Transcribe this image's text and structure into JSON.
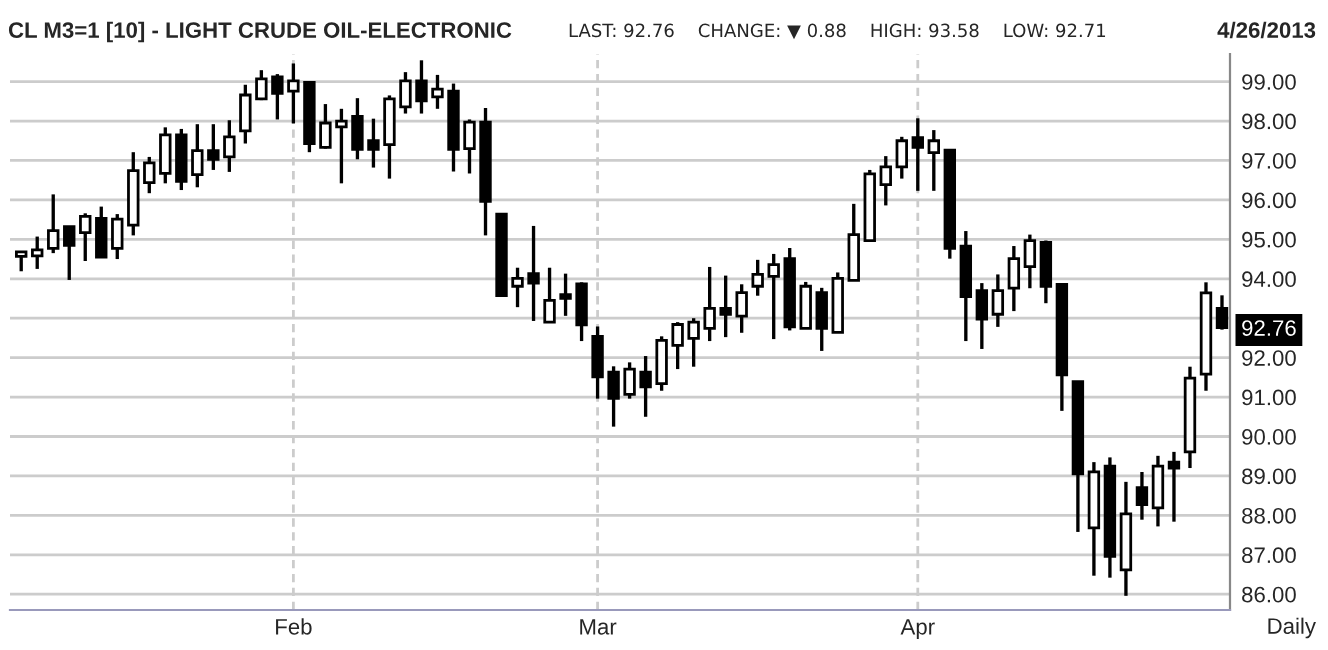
{
  "chart_data": {
    "type": "candlestick",
    "title": "CL M3=1 [10] - LIGHT CRUDE OIL-ELECTRONIC",
    "subtitle": "LAST: 92.76    CHANGE: ▼ 0.88    HIGH: 93.58    LOW: 92.71",
    "annotations": [
      "4/26/2013",
      "Daily"
    ],
    "categories": [
      null,
      null,
      null,
      null,
      null,
      null,
      null,
      null,
      null,
      null,
      null,
      null,
      null,
      null,
      null,
      null,
      null,
      "Feb",
      null,
      null,
      null,
      null,
      null,
      null,
      null,
      null,
      null,
      null,
      null,
      null,
      null,
      null,
      null,
      null,
      null,
      null,
      "Mar",
      null,
      null,
      null,
      null,
      null,
      null,
      null,
      null,
      null,
      null,
      null,
      null,
      null,
      null,
      null,
      null,
      null,
      null,
      null,
      "Apr",
      null,
      null,
      null,
      null,
      null,
      null,
      null,
      null,
      null,
      null,
      null,
      null,
      null,
      null,
      null,
      null,
      null,
      null,
      null
    ],
    "ohlc": [
      [
        94.57,
        94.68,
        94.19,
        94.68
      ],
      [
        94.58,
        95.07,
        94.25,
        94.73
      ],
      [
        94.77,
        96.14,
        94.65,
        95.22
      ],
      [
        95.32,
        95.32,
        93.97,
        94.85
      ],
      [
        95.17,
        95.66,
        94.45,
        95.58
      ],
      [
        95.53,
        95.83,
        94.55,
        94.55
      ],
      [
        94.77,
        95.64,
        94.5,
        95.51
      ],
      [
        95.36,
        97.21,
        95.1,
        96.74
      ],
      [
        96.44,
        97.09,
        96.17,
        96.94
      ],
      [
        96.67,
        97.84,
        96.42,
        97.65
      ],
      [
        97.65,
        97.8,
        96.25,
        96.47
      ],
      [
        96.64,
        97.92,
        96.32,
        97.25
      ],
      [
        97.25,
        97.92,
        96.76,
        97.03
      ],
      [
        97.09,
        98.02,
        96.71,
        97.6
      ],
      [
        97.75,
        98.92,
        97.43,
        98.66
      ],
      [
        98.56,
        99.29,
        98.53,
        99.07
      ],
      [
        99.12,
        99.19,
        98.04,
        98.7
      ],
      [
        98.76,
        99.46,
        97.94,
        99.02
      ],
      [
        98.98,
        98.98,
        97.21,
        97.43
      ],
      [
        97.33,
        98.43,
        97.3,
        97.95
      ],
      [
        97.85,
        98.31,
        96.42,
        98.0
      ],
      [
        98.12,
        98.58,
        97.03,
        97.28
      ],
      [
        97.5,
        98.06,
        96.82,
        97.28
      ],
      [
        97.4,
        98.65,
        96.54,
        98.56
      ],
      [
        98.36,
        99.24,
        98.19,
        99.02
      ],
      [
        99.02,
        99.54,
        98.19,
        98.51
      ],
      [
        98.61,
        99.17,
        98.31,
        98.81
      ],
      [
        98.76,
        98.95,
        96.72,
        97.28
      ],
      [
        97.3,
        98.04,
        96.67,
        97.97
      ],
      [
        97.97,
        98.33,
        95.1,
        95.96
      ],
      [
        95.64,
        95.64,
        93.54,
        93.57
      ],
      [
        93.81,
        94.28,
        93.28,
        94.01
      ],
      [
        94.13,
        95.34,
        92.93,
        93.89
      ],
      [
        92.9,
        94.28,
        92.9,
        93.45
      ],
      [
        93.6,
        94.13,
        93.06,
        93.5
      ],
      [
        93.87,
        93.91,
        92.42,
        92.83
      ],
      [
        92.54,
        92.79,
        90.96,
        91.51
      ],
      [
        91.63,
        91.78,
        90.25,
        90.97
      ],
      [
        91.07,
        91.88,
        90.96,
        91.71
      ],
      [
        91.63,
        92.04,
        90.5,
        91.26
      ],
      [
        91.34,
        92.54,
        91.16,
        92.44
      ],
      [
        92.31,
        92.9,
        91.71,
        92.84
      ],
      [
        92.49,
        93.0,
        91.77,
        92.9
      ],
      [
        92.74,
        94.3,
        92.42,
        93.25
      ],
      [
        93.25,
        94.08,
        92.52,
        93.1
      ],
      [
        93.05,
        93.86,
        92.63,
        93.65
      ],
      [
        93.81,
        94.48,
        93.57,
        94.11
      ],
      [
        94.06,
        94.63,
        92.47,
        94.36
      ],
      [
        94.51,
        94.78,
        92.69,
        92.78
      ],
      [
        92.74,
        93.92,
        92.74,
        93.81
      ],
      [
        93.65,
        93.77,
        92.17,
        92.74
      ],
      [
        92.64,
        94.16,
        92.64,
        94.01
      ],
      [
        93.96,
        95.9,
        93.96,
        95.12
      ],
      [
        94.97,
        96.76,
        94.97,
        96.66
      ],
      [
        96.39,
        97.11,
        95.86,
        96.84
      ],
      [
        96.84,
        97.6,
        96.54,
        97.5
      ],
      [
        97.58,
        98.07,
        96.23,
        97.33
      ],
      [
        97.2,
        97.77,
        96.23,
        97.5
      ],
      [
        97.26,
        97.26,
        94.51,
        94.77
      ],
      [
        94.83,
        95.21,
        92.42,
        93.55
      ],
      [
        93.7,
        93.89,
        92.22,
        92.98
      ],
      [
        93.1,
        94.11,
        92.78,
        93.7
      ],
      [
        93.76,
        94.83,
        93.18,
        94.51
      ],
      [
        94.31,
        95.12,
        93.76,
        94.97
      ],
      [
        94.92,
        94.97,
        93.38,
        93.81
      ],
      [
        93.86,
        93.86,
        90.65,
        91.56
      ],
      [
        91.39,
        91.39,
        87.58,
        89.05
      ],
      [
        87.68,
        89.35,
        86.47,
        89.1
      ],
      [
        89.25,
        89.47,
        86.42,
        86.96
      ],
      [
        86.62,
        88.85,
        85.96,
        88.04
      ],
      [
        88.7,
        89.1,
        87.89,
        88.27
      ],
      [
        88.19,
        89.51,
        87.72,
        89.25
      ],
      [
        89.35,
        89.61,
        87.84,
        89.2
      ],
      [
        89.61,
        91.77,
        89.2,
        91.48
      ],
      [
        91.58,
        93.91,
        91.16,
        93.64
      ],
      [
        93.25,
        93.58,
        92.71,
        92.76
      ]
    ],
    "ylim": [
      85.6,
      99.7
    ],
    "yticks": [
      {
        "value": 86,
        "label": "86.00"
      },
      {
        "value": 87,
        "label": "87.00"
      },
      {
        "value": 88,
        "label": "88.00"
      },
      {
        "value": 89,
        "label": "89.00"
      },
      {
        "value": 90,
        "label": "90.00"
      },
      {
        "value": 91,
        "label": "91.00"
      },
      {
        "value": 92,
        "label": "92.00"
      },
      {
        "value": 92.76,
        "label": "92.76"
      },
      {
        "value": 93,
        "label": null
      },
      {
        "value": 94,
        "label": "94.00"
      },
      {
        "value": 95,
        "label": "95.00"
      },
      {
        "value": 96,
        "label": "96.00"
      },
      {
        "value": 97,
        "label": "97.00"
      },
      {
        "value": 98,
        "label": "98.00"
      },
      {
        "value": 99,
        "label": "99.00"
      }
    ],
    "grid": true
  }
}
